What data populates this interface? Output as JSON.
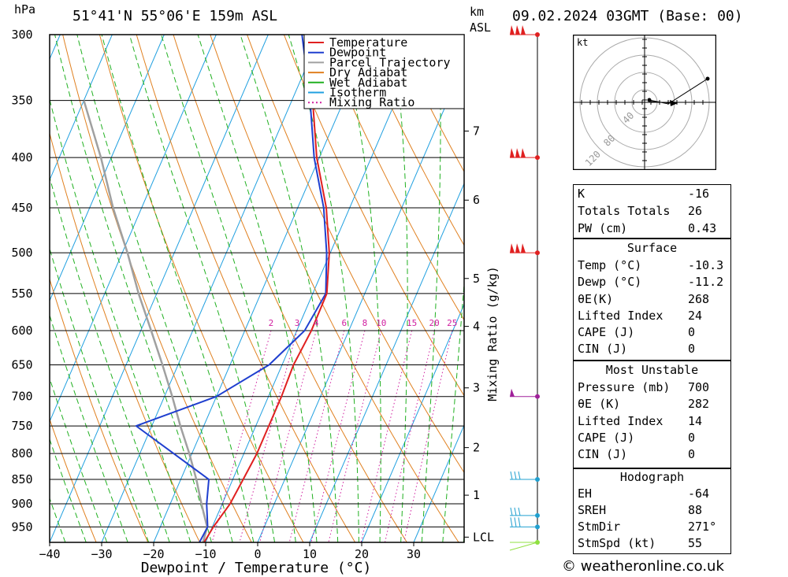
{
  "header": {
    "hpa_label": "hPa",
    "location": "51°41'N  55°06'E  159m  ASL",
    "km_label": "km",
    "asl_label": "ASL",
    "datetime": "09.02.2024  03GMT  (Base: 00)"
  },
  "chart_data": {
    "type": "skew-t log-p",
    "xlabel": "Dewpoint / Temperature (°C)",
    "ylabel_right": "Mixing Ratio (g/kg)",
    "pressure_levels": [
      300,
      350,
      400,
      450,
      500,
      550,
      600,
      650,
      700,
      750,
      800,
      850,
      900,
      950
    ],
    "pressure_range": [
      300,
      985
    ],
    "temperature_ticks": [
      -40,
      -30,
      -20,
      -10,
      0,
      10,
      20,
      30
    ],
    "temperature_range": [
      -40,
      40
    ],
    "km_ticks": [
      {
        "label": "7",
        "p": 376
      },
      {
        "label": "6",
        "p": 442
      },
      {
        "label": "5",
        "p": 531
      },
      {
        "label": "4",
        "p": 594
      },
      {
        "label": "3",
        "p": 686
      },
      {
        "label": "2",
        "p": 789
      },
      {
        "label": "1",
        "p": 882
      },
      {
        "label": "LCL",
        "p": 973
      }
    ],
    "mixing_ratio_labels": [
      "2",
      "3",
      "4",
      "6",
      "8",
      "10",
      "15",
      "20",
      "25"
    ],
    "mixing_ratio_values": [
      2,
      3,
      4,
      6,
      8,
      10,
      15,
      20,
      25
    ],
    "legend": {
      "placement": "top-right-inside",
      "entries": [
        {
          "name": "Temperature",
          "color": "#e02020",
          "style": "solid"
        },
        {
          "name": "Dewpoint",
          "color": "#1f3fcf",
          "style": "solid"
        },
        {
          "name": "Parcel Trajectory",
          "color": "#a0a0a0",
          "style": "solid"
        },
        {
          "name": "Dry Adiabat",
          "color": "#e08020",
          "style": "solid"
        },
        {
          "name": "Wet Adiabat",
          "color": "#20b020",
          "style": "solid"
        },
        {
          "name": "Isotherm",
          "color": "#20a0e0",
          "style": "solid"
        },
        {
          "name": "Mixing Ratio",
          "color": "#d020a0",
          "style": "dotted"
        }
      ]
    },
    "temperature_profile": [
      {
        "p": 985,
        "t": -10.3
      },
      {
        "p": 950,
        "t": -9.8
      },
      {
        "p": 900,
        "t": -8.5
      },
      {
        "p": 850,
        "t": -8.0
      },
      {
        "p": 800,
        "t": -7.5
      },
      {
        "p": 750,
        "t": -7.5
      },
      {
        "p": 700,
        "t": -7.5
      },
      {
        "p": 650,
        "t": -7.8
      },
      {
        "p": 600,
        "t": -7.2
      },
      {
        "p": 550,
        "t": -7.3
      },
      {
        "p": 500,
        "t": -10.2
      },
      {
        "p": 450,
        "t": -14.5
      },
      {
        "p": 400,
        "t": -20.5
      },
      {
        "p": 350,
        "t": -26.0
      },
      {
        "p": 300,
        "t": -33.0
      }
    ],
    "dewpoint_profile": [
      {
        "p": 985,
        "t": -11.2
      },
      {
        "p": 950,
        "t": -10.9
      },
      {
        "p": 900,
        "t": -13.0
      },
      {
        "p": 850,
        "t": -14.6
      },
      {
        "p": 800,
        "t": -23.5
      },
      {
        "p": 750,
        "t": -33.0
      },
      {
        "p": 700,
        "t": -20.0
      },
      {
        "p": 650,
        "t": -12.5
      },
      {
        "p": 600,
        "t": -8.5
      },
      {
        "p": 550,
        "t": -7.5
      },
      {
        "p": 500,
        "t": -10.7
      },
      {
        "p": 450,
        "t": -15.0
      },
      {
        "p": 400,
        "t": -21.0
      },
      {
        "p": 350,
        "t": -26.5
      },
      {
        "p": 300,
        "t": -33.5
      }
    ],
    "parcel_profile": [
      {
        "p": 985,
        "t": -10.5
      },
      {
        "p": 950,
        "t": -11.0
      },
      {
        "p": 900,
        "t": -14.0
      },
      {
        "p": 850,
        "t": -17.0
      },
      {
        "p": 800,
        "t": -20.5
      },
      {
        "p": 750,
        "t": -24.5
      },
      {
        "p": 700,
        "t": -28.5
      },
      {
        "p": 650,
        "t": -33.0
      },
      {
        "p": 600,
        "t": -38.0
      },
      {
        "p": 550,
        "t": -43.5
      },
      {
        "p": 500,
        "t": -49.0
      },
      {
        "p": 450,
        "t": -55.5
      },
      {
        "p": 400,
        "t": -62.0
      },
      {
        "p": 350,
        "t": -70.0
      }
    ],
    "wind_barbs": [
      {
        "p": 300,
        "color": "#e02020"
      },
      {
        "p": 400,
        "color": "#e02020"
      },
      {
        "p": 500,
        "color": "#e02020"
      },
      {
        "p": 700,
        "color": "#a0209a"
      },
      {
        "p": 850,
        "color": "#20a0d0"
      },
      {
        "p": 925,
        "color": "#20a0d0"
      },
      {
        "p": 950,
        "color": "#20a0d0"
      },
      {
        "p": 985,
        "color": "#90e040"
      }
    ]
  },
  "hodograph": {
    "unit_label": "kt",
    "ring_labels": [
      "40",
      "80",
      "120"
    ]
  },
  "indices": {
    "basic": [
      {
        "label": "K",
        "value": "-16"
      },
      {
        "label": "Totals Totals",
        "value": "26"
      },
      {
        "label": "PW (cm)",
        "value": "0.43"
      }
    ],
    "surface": {
      "title": "Surface",
      "rows": [
        {
          "label": "Temp (°C)",
          "value": "-10.3"
        },
        {
          "label": "Dewp (°C)",
          "value": "-11.2"
        },
        {
          "label": "θE(K)",
          "value": "268"
        },
        {
          "label": "Lifted Index",
          "value": "24"
        },
        {
          "label": "CAPE (J)",
          "value": "0"
        },
        {
          "label": "CIN (J)",
          "value": "0"
        }
      ]
    },
    "most_unstable": {
      "title": "Most Unstable",
      "rows": [
        {
          "label": "Pressure (mb)",
          "value": "700"
        },
        {
          "label": "θE (K)",
          "value": "282"
        },
        {
          "label": "Lifted Index",
          "value": "14"
        },
        {
          "label": "CAPE (J)",
          "value": "0"
        },
        {
          "label": "CIN (J)",
          "value": "0"
        }
      ]
    },
    "hodograph": {
      "title": "Hodograph",
      "rows": [
        {
          "label": "EH",
          "value": "-64"
        },
        {
          "label": "SREH",
          "value": "88"
        },
        {
          "label": "StmDir",
          "value": "271°"
        },
        {
          "label": "StmSpd (kt)",
          "value": "55"
        }
      ]
    }
  },
  "footer": {
    "copyright": "© weatheronline.co.uk"
  }
}
